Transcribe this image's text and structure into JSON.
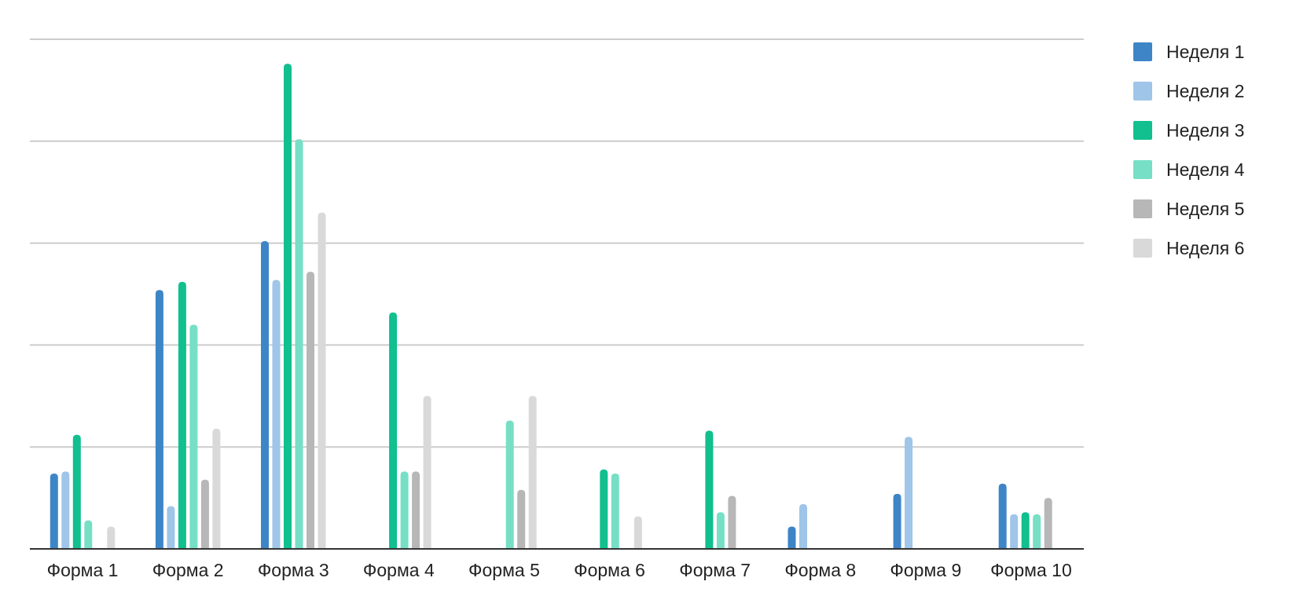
{
  "chart_data": {
    "type": "bar",
    "title": "",
    "xlabel": "",
    "ylabel": "",
    "ylim": [
      0,
      25
    ],
    "y_gridlines": [
      0,
      5,
      10,
      15,
      20,
      25
    ],
    "y_tick_labels_visible": false,
    "grid": true,
    "legend_position": "right",
    "categories": [
      "Форма 1",
      "Форма 2",
      "Форма 3",
      "Форма 4",
      "Форма 5",
      "Форма 6",
      "Форма 7",
      "Форма 8",
      "Форма 9",
      "Форма 10"
    ],
    "series": [
      {
        "name": "Неделя 1",
        "color": "#3d85c6",
        "values": [
          3.7,
          12.7,
          15.1,
          0,
          0,
          0,
          0,
          1.1,
          2.7,
          3.2
        ]
      },
      {
        "name": "Неделя 2",
        "color": "#9fc5e8",
        "values": [
          3.8,
          2.1,
          13.2,
          0,
          0,
          0,
          0,
          2.2,
          5.5,
          1.7
        ]
      },
      {
        "name": "Неделя 3",
        "color": "#11bf8f",
        "values": [
          5.6,
          13.1,
          23.8,
          11.6,
          0,
          3.9,
          5.8,
          0,
          0,
          1.8
        ]
      },
      {
        "name": "Неделя 4",
        "color": "#76dfc5",
        "values": [
          1.4,
          11.0,
          20.1,
          3.8,
          6.3,
          3.7,
          1.8,
          0,
          0,
          1.7
        ]
      },
      {
        "name": "Неделя 5",
        "color": "#b7b7b7",
        "values": [
          0,
          3.4,
          13.6,
          3.8,
          2.9,
          0,
          2.6,
          0,
          0,
          2.5
        ]
      },
      {
        "name": "Неделя 6",
        "color": "#d9d9d9",
        "values": [
          1.1,
          5.9,
          16.5,
          7.5,
          7.5,
          1.6,
          0,
          0,
          0,
          0
        ]
      }
    ]
  }
}
